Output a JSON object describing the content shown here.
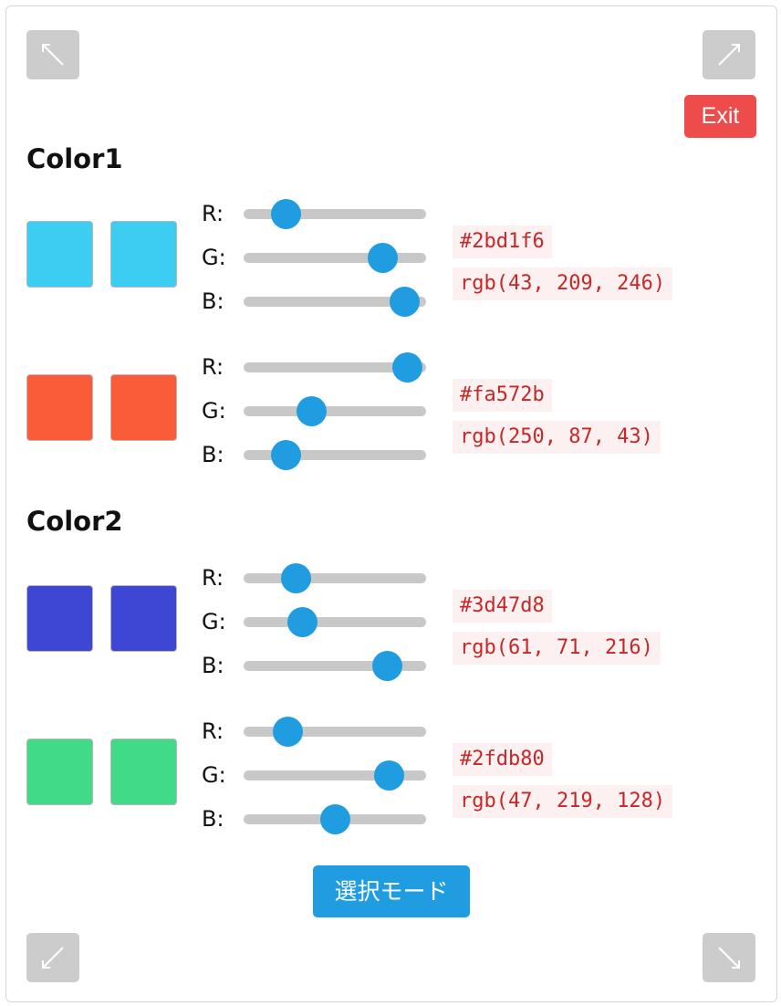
{
  "corner_buttons": {
    "top_left_icon": "arrow-up-left-icon",
    "top_right_icon": "arrow-up-right-icon",
    "bottom_left_icon": "arrow-down-left-icon",
    "bottom_right_icon": "arrow-down-right-icon"
  },
  "exit_label": "Exit",
  "sections": [
    {
      "title": "Color1",
      "colors": [
        {
          "hex": "#2bd1f6",
          "rgb_text": "rgb(43, 209, 246)",
          "swatch_color": "#3dcdf2",
          "channels": [
            {
              "label": "R:",
              "value": 43
            },
            {
              "label": "G:",
              "value": 209
            },
            {
              "label": "B:",
              "value": 246
            }
          ]
        },
        {
          "hex": "#fa572b",
          "rgb_text": "rgb(250, 87, 43)",
          "swatch_color": "#fa5c3a",
          "channels": [
            {
              "label": "R:",
              "value": 250
            },
            {
              "label": "G:",
              "value": 87
            },
            {
              "label": "B:",
              "value": 43
            }
          ]
        }
      ]
    },
    {
      "title": "Color2",
      "colors": [
        {
          "hex": "#3d47d8",
          "rgb_text": "rgb(61, 71, 216)",
          "swatch_color": "#3d47d3",
          "channels": [
            {
              "label": "R:",
              "value": 61
            },
            {
              "label": "G:",
              "value": 71
            },
            {
              "label": "B:",
              "value": 216
            }
          ]
        },
        {
          "hex": "#2fdb80",
          "rgb_text": "rgb(47, 219, 128)",
          "swatch_color": "#40da88",
          "channels": [
            {
              "label": "R:",
              "value": 47
            },
            {
              "label": "G:",
              "value": 219
            },
            {
              "label": "B:",
              "value": 128
            }
          ]
        }
      ]
    }
  ],
  "mode_button_label": "選択モード",
  "colors": {
    "thumb": "#1f9de0",
    "track": "#c8c8c8",
    "exit": "#ee4b4b",
    "code_text": "#c52828",
    "code_bg": "#fdf0f0",
    "corner_button": "#cccccc"
  }
}
